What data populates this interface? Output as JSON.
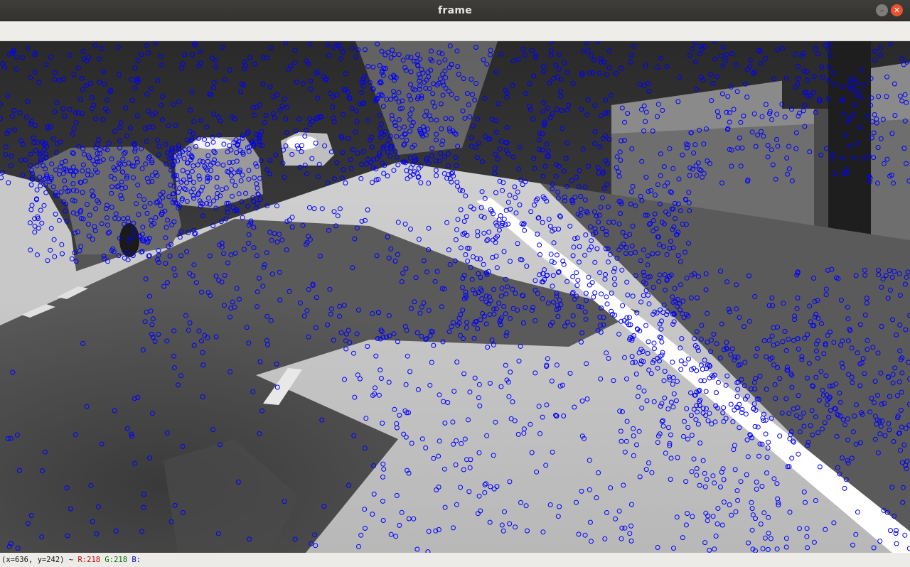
{
  "window": {
    "title": "frame"
  },
  "status": {
    "coords": "(x=636, y=242) ~",
    "r_label": "R:218",
    "g_label": "G:218",
    "b_label": "B:"
  },
  "overlay": {
    "marker_color": "#0000ff",
    "marker_shape": "circle"
  }
}
